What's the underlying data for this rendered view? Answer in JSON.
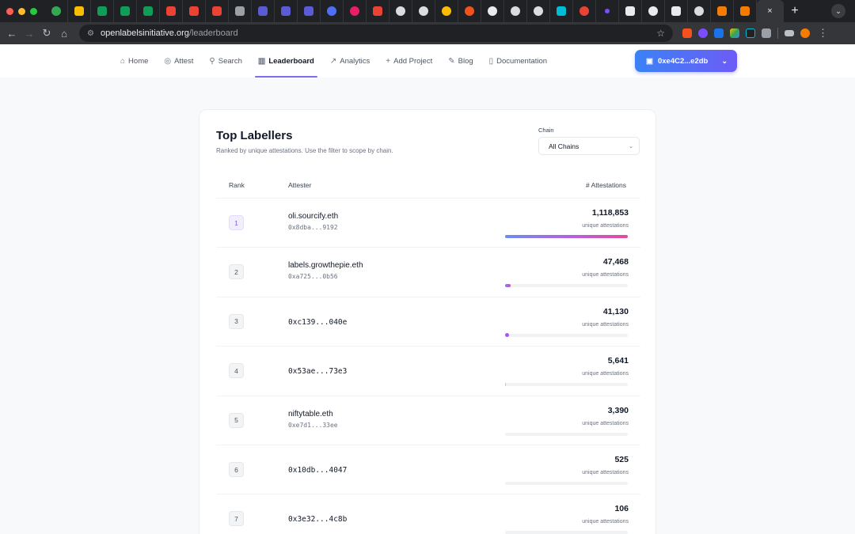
{
  "browser": {
    "url_host": "openlabelsinitiative.org",
    "url_path": "/leaderboard",
    "active_tab_close": "×",
    "new_tab": "+"
  },
  "nav": {
    "items": [
      {
        "label": "Home",
        "icon": "home-icon",
        "glyph": "⌂"
      },
      {
        "label": "Attest",
        "icon": "check-circle-icon",
        "glyph": "◎"
      },
      {
        "label": "Search",
        "icon": "search-icon",
        "glyph": "⚲"
      },
      {
        "label": "Leaderboard",
        "icon": "bar-chart-icon",
        "glyph": "▥"
      },
      {
        "label": "Analytics",
        "icon": "trend-icon",
        "glyph": "↗"
      },
      {
        "label": "Add Project",
        "icon": "plus-icon",
        "glyph": "+"
      },
      {
        "label": "Blog",
        "icon": "edit-icon",
        "glyph": "✎"
      },
      {
        "label": "Documentation",
        "icon": "book-icon",
        "glyph": "▯"
      }
    ],
    "active": "Leaderboard",
    "wallet_label": "0xe4C2...e2db"
  },
  "leaderboard": {
    "title": "Top Labellers",
    "subtitle": "Ranked by unique attestations. Use the filter to scope by chain.",
    "chain_label": "Chain",
    "chain_value": "All Chains",
    "headers": {
      "rank": "Rank",
      "attester": "Attester",
      "count": "# Attestations"
    },
    "unit_label": "unique attestations",
    "max_count": 1118853,
    "rows": [
      {
        "rank": "1",
        "name": "oli.sourcify.eth",
        "address": "0x8dba...9192",
        "count": "1,118,853",
        "value": 1118853
      },
      {
        "rank": "2",
        "name": "labels.growthepie.eth",
        "address": "0xa725...0b56",
        "count": "47,468",
        "value": 47468
      },
      {
        "rank": "3",
        "name": "",
        "address": "0xc139...040e",
        "count": "41,130",
        "value": 41130
      },
      {
        "rank": "4",
        "name": "",
        "address": "0x53ae...73e3",
        "count": "5,641",
        "value": 5641
      },
      {
        "rank": "5",
        "name": "niftytable.eth",
        "address": "0xe7d1...33ee",
        "count": "3,390",
        "value": 3390
      },
      {
        "rank": "6",
        "name": "",
        "address": "0x10db...4047",
        "count": "525",
        "value": 525
      },
      {
        "rank": "7",
        "name": "",
        "address": "0x3e32...4c8b",
        "count": "106",
        "value": 106
      }
    ]
  },
  "colors": {
    "accent": "#7c6cf0",
    "wallet_gradient_start": "#3b82f6",
    "wallet_gradient_end": "#6d5cf6",
    "bar_gradient": [
      "#6b8df0",
      "#b062e8",
      "#e64a9a"
    ]
  }
}
